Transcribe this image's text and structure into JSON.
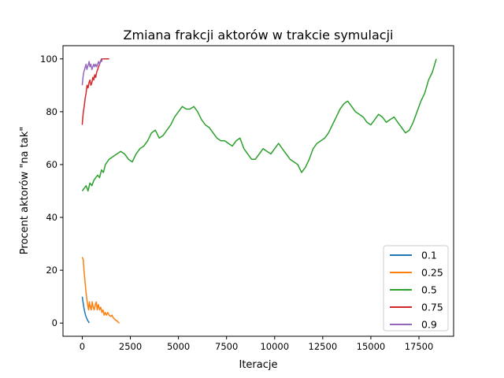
{
  "chart_data": {
    "type": "line",
    "title": "Zmiana frakcji aktorów w trakcie symulacji",
    "xlabel": "Iteracje",
    "ylabel": "Procent aktorów \"na tak\"",
    "xlim": [
      -1000,
      19300
    ],
    "ylim": [
      -5,
      105
    ],
    "xticks": [
      0,
      2500,
      5000,
      7500,
      10000,
      12500,
      15000,
      17500
    ],
    "yticks": [
      0,
      20,
      40,
      60,
      80,
      100
    ],
    "grid": false,
    "legend_position": "lower right",
    "series": [
      {
        "name": "0.1",
        "color": "#1f77b4",
        "points": [
          [
            0,
            10
          ],
          [
            40,
            8
          ],
          [
            80,
            6
          ],
          [
            120,
            4.5
          ],
          [
            170,
            3
          ],
          [
            220,
            2
          ],
          [
            280,
            1
          ],
          [
            330,
            0.5
          ],
          [
            360,
            0
          ]
        ]
      },
      {
        "name": "0.25",
        "color": "#ff7f0e",
        "points": [
          [
            0,
            25
          ],
          [
            50,
            24
          ],
          [
            90,
            20
          ],
          [
            140,
            16
          ],
          [
            190,
            12
          ],
          [
            240,
            9
          ],
          [
            280,
            7
          ],
          [
            330,
            5
          ],
          [
            370,
            8
          ],
          [
            420,
            6
          ],
          [
            470,
            5
          ],
          [
            520,
            8
          ],
          [
            570,
            6
          ],
          [
            620,
            5
          ],
          [
            680,
            7
          ],
          [
            730,
            8
          ],
          [
            780,
            5
          ],
          [
            840,
            7
          ],
          [
            900,
            5
          ],
          [
            960,
            6
          ],
          [
            1020,
            4
          ],
          [
            1080,
            5
          ],
          [
            1140,
            3
          ],
          [
            1200,
            4
          ],
          [
            1260,
            3
          ],
          [
            1330,
            4
          ],
          [
            1400,
            3
          ],
          [
            1470,
            2.5
          ],
          [
            1540,
            3
          ],
          [
            1610,
            2
          ],
          [
            1680,
            1.5
          ],
          [
            1750,
            1
          ],
          [
            1810,
            0.8
          ],
          [
            1870,
            0.3
          ],
          [
            1930,
            0
          ]
        ]
      },
      {
        "name": "0.5",
        "color": "#2ca02c",
        "points": [
          [
            0,
            50
          ],
          [
            100,
            51
          ],
          [
            200,
            52
          ],
          [
            300,
            50
          ],
          [
            400,
            53
          ],
          [
            500,
            52
          ],
          [
            600,
            54
          ],
          [
            700,
            55
          ],
          [
            800,
            56
          ],
          [
            900,
            55
          ],
          [
            1000,
            58
          ],
          [
            1100,
            57
          ],
          [
            1200,
            60
          ],
          [
            1400,
            62
          ],
          [
            1600,
            63
          ],
          [
            1800,
            64
          ],
          [
            2000,
            65
          ],
          [
            2200,
            64
          ],
          [
            2400,
            62
          ],
          [
            2600,
            61
          ],
          [
            2800,
            64
          ],
          [
            3000,
            66
          ],
          [
            3200,
            67
          ],
          [
            3400,
            69
          ],
          [
            3600,
            72
          ],
          [
            3800,
            73
          ],
          [
            4000,
            70
          ],
          [
            4200,
            71
          ],
          [
            4400,
            73
          ],
          [
            4600,
            75
          ],
          [
            4800,
            78
          ],
          [
            5000,
            80
          ],
          [
            5200,
            82
          ],
          [
            5400,
            81
          ],
          [
            5600,
            81
          ],
          [
            5800,
            82
          ],
          [
            6000,
            80
          ],
          [
            6200,
            77
          ],
          [
            6400,
            75
          ],
          [
            6600,
            74
          ],
          [
            6800,
            72
          ],
          [
            7000,
            70
          ],
          [
            7200,
            69
          ],
          [
            7400,
            69
          ],
          [
            7600,
            68
          ],
          [
            7800,
            67
          ],
          [
            8000,
            69
          ],
          [
            8200,
            70
          ],
          [
            8400,
            66
          ],
          [
            8600,
            64
          ],
          [
            8800,
            62
          ],
          [
            9000,
            62
          ],
          [
            9200,
            64
          ],
          [
            9400,
            66
          ],
          [
            9600,
            65
          ],
          [
            9800,
            64
          ],
          [
            10000,
            66
          ],
          [
            10200,
            68
          ],
          [
            10400,
            66
          ],
          [
            10600,
            64
          ],
          [
            10800,
            62
          ],
          [
            11000,
            61
          ],
          [
            11200,
            60
          ],
          [
            11400,
            57
          ],
          [
            11600,
            59
          ],
          [
            11800,
            62
          ],
          [
            12000,
            66
          ],
          [
            12200,
            68
          ],
          [
            12400,
            69
          ],
          [
            12600,
            70
          ],
          [
            12800,
            72
          ],
          [
            13000,
            75
          ],
          [
            13200,
            78
          ],
          [
            13400,
            81
          ],
          [
            13600,
            83
          ],
          [
            13800,
            84
          ],
          [
            14000,
            82
          ],
          [
            14200,
            80
          ],
          [
            14400,
            79
          ],
          [
            14600,
            78
          ],
          [
            14800,
            76
          ],
          [
            15000,
            75
          ],
          [
            15200,
            77
          ],
          [
            15400,
            79
          ],
          [
            15600,
            78
          ],
          [
            15800,
            76
          ],
          [
            16000,
            77
          ],
          [
            16200,
            78
          ],
          [
            16400,
            76
          ],
          [
            16600,
            74
          ],
          [
            16800,
            72
          ],
          [
            17000,
            73
          ],
          [
            17200,
            76
          ],
          [
            17400,
            80
          ],
          [
            17600,
            84
          ],
          [
            17800,
            87
          ],
          [
            18000,
            92
          ],
          [
            18200,
            95
          ],
          [
            18400,
            100
          ]
        ]
      },
      {
        "name": "0.75",
        "color": "#d62728",
        "points": [
          [
            0,
            75
          ],
          [
            30,
            78
          ],
          [
            60,
            80
          ],
          [
            100,
            82
          ],
          [
            150,
            85
          ],
          [
            200,
            87
          ],
          [
            250,
            90
          ],
          [
            300,
            89
          ],
          [
            350,
            91
          ],
          [
            400,
            92
          ],
          [
            450,
            90
          ],
          [
            500,
            91
          ],
          [
            550,
            93
          ],
          [
            600,
            92
          ],
          [
            650,
            94
          ],
          [
            700,
            93
          ],
          [
            750,
            95
          ],
          [
            800,
            96
          ],
          [
            850,
            97
          ],
          [
            900,
            98
          ],
          [
            950,
            99
          ],
          [
            1000,
            100
          ],
          [
            1150,
            100
          ],
          [
            1300,
            100
          ],
          [
            1400,
            100
          ]
        ]
      },
      {
        "name": "0.9",
        "color": "#9467bd",
        "points": [
          [
            0,
            90
          ],
          [
            40,
            93
          ],
          [
            80,
            95
          ],
          [
            120,
            96
          ],
          [
            160,
            97
          ],
          [
            200,
            98
          ],
          [
            240,
            96
          ],
          [
            280,
            97
          ],
          [
            320,
            98
          ],
          [
            360,
            99
          ],
          [
            400,
            97
          ],
          [
            450,
            98
          ],
          [
            500,
            96
          ],
          [
            550,
            97
          ],
          [
            600,
            98
          ],
          [
            650,
            97
          ],
          [
            700,
            98
          ],
          [
            750,
            97
          ],
          [
            800,
            98
          ],
          [
            850,
            99
          ],
          [
            900,
            98
          ],
          [
            950,
            99
          ],
          [
            1000,
            99
          ],
          [
            1050,
            100
          ],
          [
            1100,
            100
          ]
        ]
      }
    ]
  }
}
